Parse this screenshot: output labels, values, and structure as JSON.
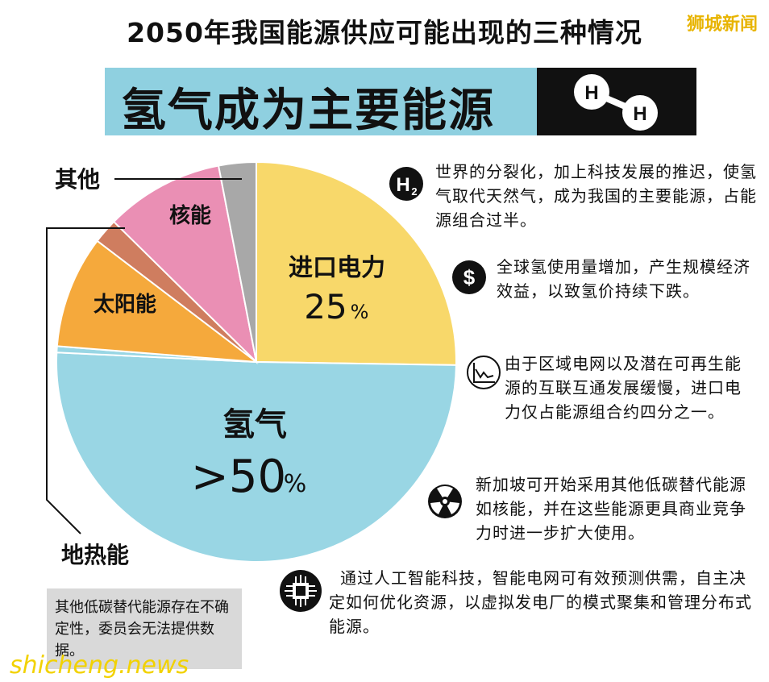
{
  "header": {
    "title": "2050年我国能源供应可能出现的三种情况",
    "brand": "狮城新闻",
    "scenario_title": "氢气成为主要能源",
    "molecule_atoms": [
      "H",
      "H"
    ]
  },
  "chart_data": {
    "type": "pie",
    "slices": [
      {
        "label": "进口电力",
        "value_label": "25",
        "unit": "%",
        "value": 25,
        "color": "#f8d86a"
      },
      {
        "label": "氢气",
        "value_label": ">50",
        "unit": "%",
        "value": 50,
        "color": "#99d6e4"
      },
      {
        "label": "地热能",
        "value_label": "",
        "unit": "",
        "value": 0.5,
        "color": "#99d6e4"
      },
      {
        "label": "太阳能",
        "value_label": "",
        "unit": "",
        "value": 9,
        "color": "#f5a93c"
      },
      {
        "label": "",
        "value_label": "",
        "unit": "",
        "value": 2,
        "color": "#cf7d5f"
      },
      {
        "label": "核能",
        "value_label": "",
        "unit": "",
        "value": 9.5,
        "color": "#ea8fb4"
      },
      {
        "label": "其他",
        "value_label": "",
        "unit": "",
        "value": 3,
        "color": "#a8a8a8"
      }
    ]
  },
  "items": [
    {
      "icon": "h2-icon",
      "icon_text": "H",
      "icon_sub": "2",
      "text": "世界的分裂化，加上科技发展的推迟，使氢气取代天然气，成为我国的主要能源，占能源组合过半。"
    },
    {
      "icon": "dollar-icon",
      "icon_text": "$",
      "text": "全球氢使用量增加，产生规模经济效益，以致氢价持续下跌。"
    },
    {
      "icon": "line-chart-icon",
      "text": "由于区域电网以及潜在可再生能源的互联互通发展缓慢，进口电力仅占能源组合约四分之一。"
    },
    {
      "icon": "radiation-icon",
      "text": "新加坡可开始采用其他低碳替代能源如核能，并在这些能源更具商业竞争力时进一步扩大使用。"
    },
    {
      "icon": "chip-icon",
      "text": "通过人工智能科技，智能电网可有效预测供需，自主决定如何优化资源，以虚拟发电厂的模式聚集和管理分布式能源。"
    }
  ],
  "note": "其他低碳替代能源存在不确定性，委员会无法提供数据。",
  "watermark": "shicheng.news"
}
